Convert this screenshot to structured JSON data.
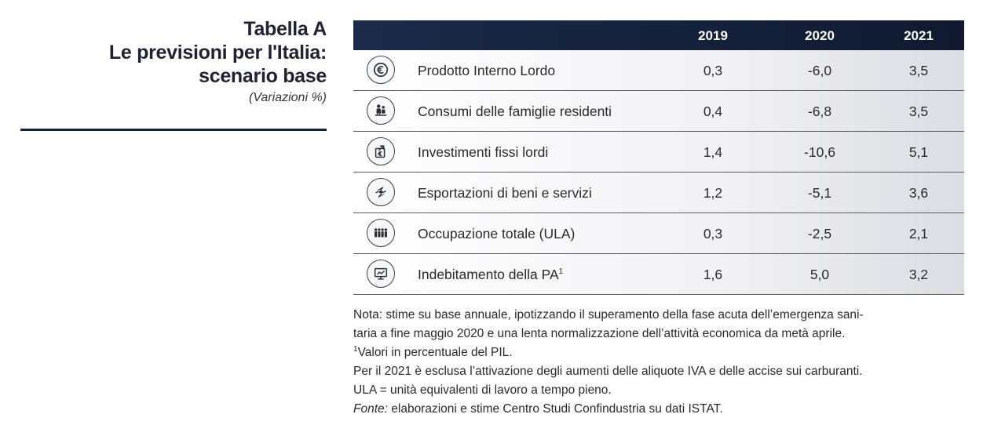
{
  "heading": {
    "line1": "Tabella A",
    "line2": "Le previsioni per l'Italia:",
    "line3": "scenario base",
    "subtitle": "(Variazioni %)"
  },
  "table": {
    "years": [
      "2019",
      "2020",
      "2021"
    ],
    "rows": [
      {
        "icon": "euro-coin-icon",
        "label": "Prodotto Interno Lordo",
        "sup": "",
        "v2019": "0,3",
        "v2020": "-6,0",
        "v2021": "3,5"
      },
      {
        "icon": "family-icon",
        "label": "Consumi delle famiglie residenti",
        "sup": "",
        "v2019": "0,4",
        "v2020": "-6,8",
        "v2021": "3,5"
      },
      {
        "icon": "investment-euro-icon",
        "label": "Investimenti fissi lordi",
        "sup": "",
        "v2019": "1,4",
        "v2020": "-10,6",
        "v2021": "5,1"
      },
      {
        "icon": "export-arrows-icon",
        "label": "Esportazioni di beni e servizi",
        "sup": "",
        "v2019": "1,2",
        "v2020": "-5,1",
        "v2021": "3,6"
      },
      {
        "icon": "workers-icon",
        "label": "Occupazione totale (ULA)",
        "sup": "",
        "v2019": "0,3",
        "v2020": "-2,5",
        "v2021": "2,1"
      },
      {
        "icon": "monitor-chart-icon",
        "label": "Indebitamento della PA",
        "sup": "1",
        "v2019": "1,6",
        "v2020": "5,0",
        "v2021": "3,2"
      }
    ]
  },
  "notes": {
    "line1": "Nota: stime su base annuale, ipotizzando il superamento della fase acuta dell’emergenza sani-",
    "line2": "taria a fine maggio 2020 e una lenta normalizzazione dell’attività economica da metà aprile.",
    "footnote_mark": "1",
    "line3": "Valori in percentuale del PIL.",
    "line4": "Per il 2021 è esclusa l’attivazione degli aumenti delle aliquote IVA e delle accise sui carburanti.",
    "line5": "ULA = unità equivalenti di lavoro a tempo pieno.",
    "fonte_label": "Fonte:",
    "fonte_text": " elaborazioni e stime Centro Studi Confindustria su dati ISTAT."
  }
}
